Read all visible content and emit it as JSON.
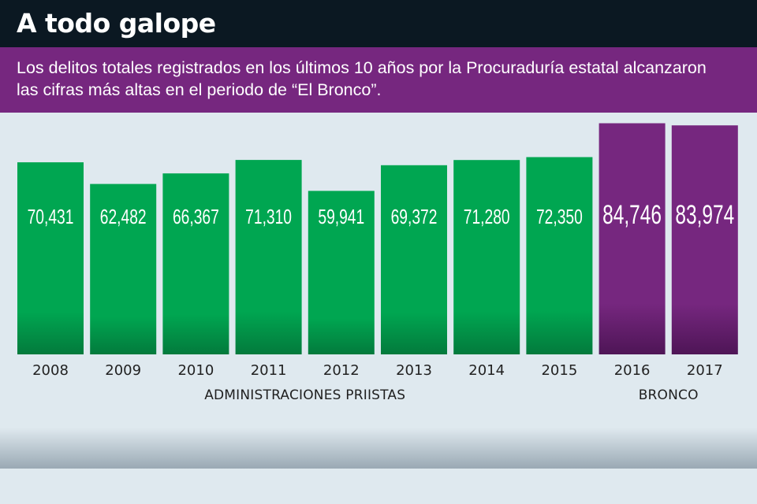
{
  "header": {
    "title": "A todo galope",
    "subtitle_line1": "Los delitos totales registrados en los últimos 10 años por la Procuraduría estatal alcanzaron",
    "subtitle_line2": "las cifras más altas en el periodo de “El Bronco”."
  },
  "colors": {
    "header_bg": "#0b1822",
    "subtitle_bg": "#76277f",
    "background": "#dfe9ef",
    "pri_bar": "#00a651",
    "bronco_bar": "#76277f"
  },
  "chart_data": {
    "type": "bar",
    "title": "A todo galope",
    "subtitle": "Los delitos totales registrados en los últimos 10 años por la Procuraduría estatal alcanzaron las cifras más altas en el periodo de “El Bronco”.",
    "categories": [
      "2008",
      "2009",
      "2010",
      "2011",
      "2012",
      "2013",
      "2014",
      "2015",
      "2016",
      "2017"
    ],
    "values": [
      70431,
      62482,
      66367,
      71310,
      59941,
      69372,
      71280,
      72350,
      84746,
      83974
    ],
    "value_labels": [
      "70,431",
      "62,482",
      "66,367",
      "71,310",
      "59,941",
      "69,372",
      "71,280",
      "72,350",
      "84,746",
      "83,974"
    ],
    "groups": [
      {
        "name": "ADMINISTRACIONES PRIISTAS",
        "categories": [
          "2008",
          "2009",
          "2010",
          "2011",
          "2012",
          "2013",
          "2014",
          "2015"
        ],
        "color": "#00a651"
      },
      {
        "name": "BRONCO",
        "categories": [
          "2016",
          "2017"
        ],
        "color": "#76277f"
      }
    ],
    "xlabel": "",
    "ylabel": "",
    "ylim": [
      0,
      85000
    ],
    "grid": false,
    "legend": "none"
  }
}
